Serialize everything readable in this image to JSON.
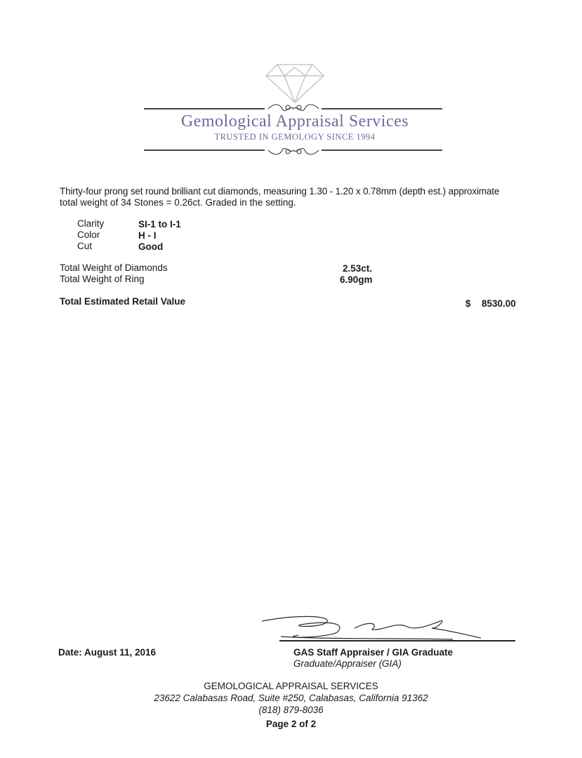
{
  "header": {
    "company_name": "Gemological Appraisal Services",
    "tagline": "TRUSTED IN GEMOLOGY SINCE 1994",
    "brand_color": "#6e6a9a"
  },
  "description": {
    "line1": "Thirty-four prong set round brilliant cut diamonds, measuring 1.30 - 1.20 x 0.78mm (depth est.) approximate",
    "line2": "total weight of 34 Stones = 0.26ct. Graded in the setting."
  },
  "grades": [
    {
      "label": "Clarity",
      "value": "SI-1 to I-1"
    },
    {
      "label": "Color",
      "value": "H - I"
    },
    {
      "label": "Cut",
      "value": "Good"
    }
  ],
  "weights": [
    {
      "label": "Total Weight of Diamonds",
      "value": "2.53ct."
    },
    {
      "label": "Total Weight of Ring",
      "value": "6.90gm"
    }
  ],
  "total": {
    "label": "Total Estimated Retail Value",
    "currency": "$",
    "value": "8530.00"
  },
  "signature": {
    "title": "GAS Staff Appraiser / GIA Graduate",
    "subtitle": "Graduate/Appraiser (GIA)"
  },
  "date": "Date: August 11, 2016",
  "footer": {
    "company": "GEMOLOGICAL APPRAISAL SERVICES",
    "address": "23622 Calabasas Road, Suite #250, Calabasas, California 91362",
    "phone": "(818) 879-8036",
    "page": "Page 2 of 2"
  }
}
